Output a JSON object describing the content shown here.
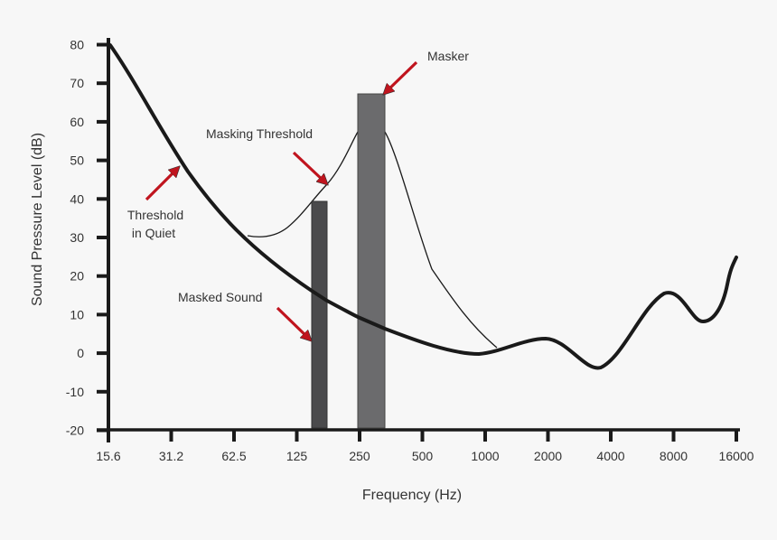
{
  "chart_data": {
    "type": "line",
    "title": "",
    "xlabel": "Frequency (Hz)",
    "ylabel": "Sound Pressure Level (dB)",
    "x_scale": "log2",
    "x_ticks": [
      "15.6",
      "31.2",
      "62.5",
      "125",
      "250",
      "500",
      "1000",
      "2000",
      "4000",
      "8000",
      "16000"
    ],
    "y_ticks": [
      "80",
      "70",
      "60",
      "50",
      "40",
      "30",
      "20",
      "10",
      "0",
      "-10",
      "-20"
    ],
    "ylim": [
      -20,
      80
    ],
    "grid": false,
    "series": [
      {
        "name": "Threshold in Quiet",
        "style": "thick",
        "points": [
          [
            15.6,
            80
          ],
          [
            31.2,
            47
          ],
          [
            62.5,
            27
          ],
          [
            125,
            16
          ],
          [
            250,
            8
          ],
          [
            500,
            3
          ],
          [
            1000,
            0
          ],
          [
            2000,
            4
          ],
          [
            4000,
            -4
          ],
          [
            6000,
            12
          ],
          [
            8000,
            16
          ],
          [
            10000,
            8
          ],
          [
            14000,
            18
          ],
          [
            16000,
            25
          ]
        ]
      },
      {
        "name": "Masking Threshold",
        "style": "thin",
        "points": [
          [
            75,
            30
          ],
          [
            100,
            32
          ],
          [
            160,
            43
          ],
          [
            220,
            53
          ],
          [
            265,
            57
          ],
          [
            320,
            52
          ],
          [
            560,
            22
          ],
          [
            1150,
            1
          ]
        ]
      }
    ],
    "bars": [
      {
        "name": "Masked Sound",
        "frequency": 160,
        "level": 39,
        "color": "#4a4a4c"
      },
      {
        "name": "Masker",
        "frequency": 300,
        "level": 67,
        "color": "#6b6b6d"
      }
    ],
    "annotations": [
      {
        "text": "Masker",
        "arrow_color": "#c0141e"
      },
      {
        "text": "Masking Threshold",
        "arrow_color": "#c0141e"
      },
      {
        "text_lines": [
          "Threshold",
          "in Quiet"
        ],
        "arrow_color": "#c0141e"
      },
      {
        "text": "Masked Sound",
        "arrow_color": "#c0141e"
      }
    ]
  },
  "labels": {
    "xlabel": "Frequency (Hz)",
    "ylabel": "Sound Pressure Level (dB)",
    "masker": "Masker",
    "masking_threshold": "Masking Threshold",
    "threshold_line1": "Threshold",
    "threshold_line2": "in Quiet",
    "masked_sound": "Masked Sound"
  },
  "colors": {
    "background": "#f7f7f7",
    "axis": "#1a1a1a",
    "arrow": "#c0141e",
    "masker_bar": "#6b6b6d",
    "masked_bar": "#4a4a4c"
  }
}
